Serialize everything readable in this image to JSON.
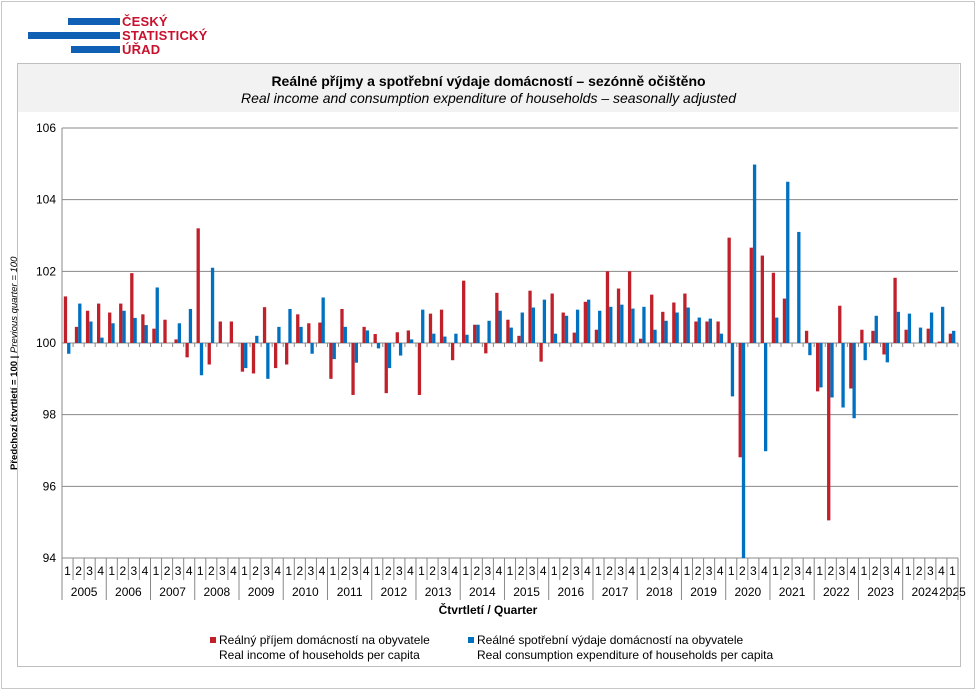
{
  "logo": {
    "lines": [
      "ČESKÝ",
      "STATISTICKÝ",
      "ÚŘAD"
    ]
  },
  "colors": {
    "income": "#c0202a",
    "consumption": "#0070c0",
    "grid": "#888888"
  },
  "chart_data": {
    "type": "bar",
    "title": "Reálné příjmy a spotřební výdaje domácností – sezónně očištěno",
    "subtitle": "Real income and consumption expenditure of households – seasonally adjusted",
    "ylabel_cz": "Předchozí čtvrtletí = 100",
    "ylabel_sep": " | ",
    "ylabel_en": "Previous quarter = 100",
    "xlabel": "Čtvrtletí / Quarter",
    "ylim": [
      94,
      106
    ],
    "baseline": 100,
    "yticks": [
      "94",
      "96",
      "98",
      "100",
      "102",
      "104",
      "106"
    ],
    "grid": true,
    "legend_position": "bottom",
    "years": [
      "2005",
      "2006",
      "2007",
      "2008",
      "2009",
      "2010",
      "2011",
      "2012",
      "2013",
      "2014",
      "2015",
      "2016",
      "2017",
      "2018",
      "2019",
      "2020",
      "2021",
      "2022",
      "2023",
      "2024",
      "2025"
    ],
    "quarters_per_year": [
      4,
      4,
      4,
      4,
      4,
      4,
      4,
      4,
      4,
      4,
      4,
      4,
      4,
      4,
      4,
      4,
      4,
      4,
      4,
      4,
      1
    ],
    "quarter_labels": [
      "1",
      "2",
      "3",
      "4"
    ],
    "series": [
      {
        "name": "Reálný příjem domácností na obyvatele",
        "name_en": "Real income of households per capita",
        "values": [
          101.3,
          100.45,
          100.9,
          101.1,
          100.85,
          101.1,
          101.95,
          100.8,
          100.4,
          100.65,
          100.1,
          99.6,
          103.2,
          99.4,
          100.6,
          100.6,
          99.2,
          99.15,
          101.0,
          99.3,
          99.4,
          100.8,
          100.55,
          100.57,
          99.0,
          100.95,
          98.55,
          100.45,
          100.25,
          98.6,
          100.3,
          100.35,
          98.55,
          100.82,
          100.93,
          99.52,
          101.74,
          100.51,
          99.71,
          101.4,
          100.65,
          100.2,
          101.46,
          99.48,
          101.38,
          100.85,
          100.29,
          101.15,
          100.37,
          102.0,
          101.52,
          102.0,
          100.12,
          101.35,
          100.87,
          101.13,
          101.38,
          100.6,
          100.6,
          100.6,
          102.94,
          96.81,
          102.66,
          102.44,
          101.96,
          101.24,
          100.0,
          100.34,
          98.65,
          95.05,
          101.04,
          98.73,
          100.37,
          100.34,
          99.68,
          101.82,
          100.37,
          100.0,
          100.4,
          100.04,
          100.26
        ]
      },
      {
        "name": "Reálné spotřební výdaje domácností na obyvatele",
        "name_en": "Real consumption expenditure of households per capita",
        "values": [
          99.7,
          101.1,
          100.6,
          100.15,
          100.55,
          100.9,
          100.7,
          100.5,
          101.55,
          100.0,
          100.55,
          100.95,
          99.1,
          102.1,
          100.0,
          100.0,
          99.3,
          100.2,
          99.0,
          100.45,
          100.95,
          100.45,
          99.7,
          101.27,
          99.55,
          100.45,
          99.45,
          100.35,
          99.85,
          99.3,
          99.65,
          100.1,
          100.93,
          100.26,
          100.18,
          100.26,
          100.23,
          100.51,
          100.62,
          100.9,
          100.43,
          100.85,
          100.99,
          101.21,
          100.26,
          100.76,
          100.93,
          101.21,
          100.9,
          101.01,
          101.07,
          100.96,
          101.01,
          100.37,
          100.62,
          100.85,
          100.99,
          100.71,
          100.68,
          100.26,
          98.51,
          93.9,
          104.98,
          96.98,
          100.71,
          104.5,
          103.1,
          99.66,
          98.76,
          98.48,
          98.2,
          97.9,
          99.52,
          100.76,
          99.46,
          100.87,
          100.82,
          100.43,
          100.85,
          101.01,
          100.34
        ]
      }
    ]
  }
}
